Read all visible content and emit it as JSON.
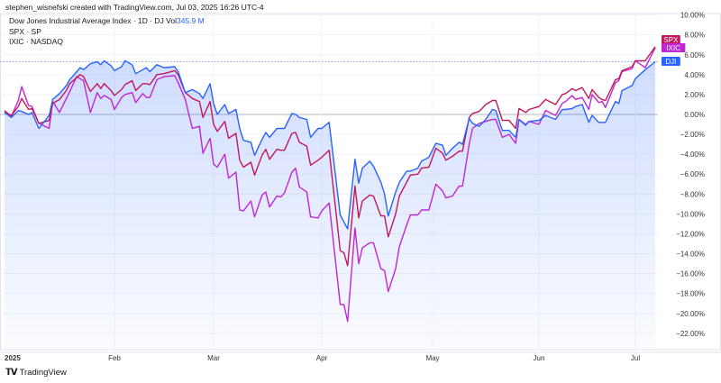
{
  "header": "stephen_wisnefski created with TradingView.com, Jul 03, 2025 16:26 UTC-4",
  "legend": {
    "line1": "Dow Jones Industrial Average Index · 1D · DJ  Vol",
    "vol": "345.9 M",
    "line2": "SPX · SP",
    "line3": "IXIC · NASDAQ"
  },
  "brand": {
    "logo_mark": "TV",
    "name": "TradingView"
  },
  "chart_data": {
    "type": "line",
    "ylabel": "",
    "xlabel": "",
    "ylim": [
      -22,
      10
    ],
    "y_unit": "%",
    "grid": true,
    "y_ticks": [
      "10.00%",
      "8.00%",
      "6.00%",
      "4.00%",
      "2.00%",
      "0.00%",
      "−2.00%",
      "−4.00%",
      "−6.00%",
      "−8.00%",
      "−10.00%",
      "−12.00%",
      "−14.00%",
      "−16.00%",
      "−18.00%",
      "−20.00%",
      "−22.00%"
    ],
    "y_tick_values": [
      10,
      8,
      6,
      4,
      2,
      0,
      -2,
      -4,
      -6,
      -8,
      -10,
      -12,
      -14,
      -16,
      -18,
      -20,
      -22
    ],
    "x_ticks": [
      {
        "label": "2025",
        "date": "2025-01-02"
      },
      {
        "label": "Feb",
        "date": "2025-02-03"
      },
      {
        "label": "Mar",
        "date": "2025-03-03"
      },
      {
        "label": "Apr",
        "date": "2025-04-01"
      },
      {
        "label": "May",
        "date": "2025-05-01"
      },
      {
        "label": "Jun",
        "date": "2025-06-02"
      },
      {
        "label": "Jul",
        "date": "2025-07-01"
      }
    ],
    "x": [
      "2025-01-02",
      "2025-01-04",
      "2025-01-06",
      "2025-01-07",
      "2025-01-09",
      "2025-01-10",
      "2025-01-12",
      "2025-01-15",
      "2025-01-16",
      "2025-01-18",
      "2025-01-20",
      "2025-01-21",
      "2025-01-23",
      "2025-01-24",
      "2025-01-25",
      "2025-01-27",
      "2025-01-29",
      "2025-01-30",
      "2025-01-31",
      "2025-02-02",
      "2025-02-03",
      "2025-02-05",
      "2025-02-06",
      "2025-02-08",
      "2025-02-09",
      "2025-02-11",
      "2025-02-12",
      "2025-02-13",
      "2025-02-15",
      "2025-02-17",
      "2025-02-20",
      "2025-02-21",
      "2025-02-23",
      "2025-02-25",
      "2025-02-27",
      "2025-02-28",
      "2025-03-02",
      "2025-03-03",
      "2025-03-04",
      "2025-03-06",
      "2025-03-07",
      "2025-03-09",
      "2025-03-10",
      "2025-03-11",
      "2025-03-13",
      "2025-03-14",
      "2025-03-16",
      "2025-03-17",
      "2025-03-18",
      "2025-03-20",
      "2025-03-21",
      "2025-03-22",
      "2025-03-24",
      "2025-03-25",
      "2025-03-26",
      "2025-03-28",
      "2025-03-29",
      "2025-03-31",
      "2025-04-01",
      "2025-04-03",
      "2025-04-06",
      "2025-04-07",
      "2025-04-08",
      "2025-04-10",
      "2025-04-11",
      "2025-04-12",
      "2025-04-14",
      "2025-04-15",
      "2025-04-17",
      "2025-04-18",
      "2025-04-19",
      "2025-04-21",
      "2025-04-22",
      "2025-04-24",
      "2025-04-25",
      "2025-04-27",
      "2025-04-28",
      "2025-04-30",
      "2025-05-02",
      "2025-05-04",
      "2025-05-05",
      "2025-05-07",
      "2025-05-09",
      "2025-05-10",
      "2025-05-12",
      "2025-05-13",
      "2025-05-15",
      "2025-05-17",
      "2025-05-19",
      "2025-05-20",
      "2025-05-22",
      "2025-05-24",
      "2025-05-26",
      "2025-05-27",
      "2025-05-29",
      "2025-05-30",
      "2025-06-02",
      "2025-06-04",
      "2025-06-07",
      "2025-06-09",
      "2025-06-10",
      "2025-06-12",
      "2025-06-13",
      "2025-06-15",
      "2025-06-17",
      "2025-06-18",
      "2025-06-20",
      "2025-06-21",
      "2025-06-22",
      "2025-06-25",
      "2025-06-26",
      "2025-06-27",
      "2025-06-30",
      "2025-07-01",
      "2025-07-02",
      "2025-07-03"
    ],
    "series": [
      {
        "name": "DJI",
        "color": "#2962ff",
        "values": [
          0.2,
          -0.3,
          0.4,
          0.3,
          0,
          0.2,
          -1.4,
          -0.1,
          1.5,
          2.1,
          2.9,
          3.5,
          4.3,
          4.7,
          4.5,
          5.1,
          5.3,
          5.0,
          5.4,
          4.9,
          4.4,
          4.8,
          5.4,
          5.0,
          4.1,
          4.5,
          4.7,
          4.3,
          5.0,
          4.7,
          4.8,
          4.3,
          2.2,
          2.5,
          2.1,
          1.6,
          3.1,
          1.1,
          0,
          1.0,
          0.1,
          0.5,
          -1.4,
          -2.6,
          -2.8,
          -4.1,
          -2.5,
          -1.8,
          -2.3,
          -1.4,
          -1.4,
          -1.4,
          0.1,
          0,
          -0.3,
          -0.5,
          -2.3,
          -1.4,
          -1.4,
          -0.8,
          -10.1,
          -10.8,
          -11.5,
          -4.5,
          -6.9,
          -5.4,
          -4.7,
          -5.2,
          -6.8,
          -8.0,
          -10.2,
          -7.8,
          -6.8,
          -5.7,
          -5.7,
          -5.4,
          -4.7,
          -4.3,
          -2.9,
          -3.1,
          -4.1,
          -3.4,
          -2.8,
          -3.0,
          -0.4,
          -0.9,
          -1.2,
          -0.5,
          0.5,
          0.4,
          -1.6,
          -1.6,
          -2.3,
          -0.5,
          -1.1,
          -0.7,
          -0.6,
          -0.1,
          -0.5,
          0.5,
          0.5,
          0.6,
          0.8,
          1.0,
          -0.8,
          -0.1,
          -0.8,
          -0.8,
          -0.8,
          1.3,
          1.1,
          2.4,
          2.9,
          3.6,
          4.5,
          5.3
        ]
      },
      {
        "name": "SPX",
        "color": "#c2185b",
        "values": [
          0.3,
          -0.1,
          0.8,
          1.6,
          0.5,
          0.6,
          -0.9,
          -0.6,
          1.1,
          1.5,
          2.4,
          3.1,
          3.7,
          4.0,
          3.8,
          2.3,
          3.1,
          2.6,
          3.1,
          2.4,
          1.9,
          2.5,
          3.0,
          3.4,
          2.4,
          3.1,
          3.1,
          3.0,
          4.0,
          4.1,
          4.4,
          4.0,
          2.2,
          1.6,
          1.3,
          -0.3,
          1.3,
          -1.0,
          -1.7,
          -0.7,
          -2.4,
          -1.9,
          -4.6,
          -5.3,
          -4.8,
          -6.1,
          -4.1,
          -3.5,
          -4.5,
          -3.5,
          -3.6,
          -3.6,
          -1.9,
          -1.8,
          -2.8,
          -3.2,
          -5.1,
          -4.6,
          -4.3,
          -3.6,
          -13.7,
          -13.9,
          -15.2,
          -7.2,
          -10.4,
          -8.7,
          -8.1,
          -8.2,
          -10.2,
          -10.2,
          -12.3,
          -10.0,
          -8.2,
          -6.8,
          -6.1,
          -6.0,
          -5.4,
          -5.3,
          -3.4,
          -3.9,
          -4.6,
          -4.2,
          -3.7,
          -3.7,
          -0.3,
          0.1,
          0.3,
          1.0,
          1.4,
          1.4,
          -0.6,
          -0.6,
          -1.4,
          0.6,
          0.2,
          0.5,
          0.8,
          1.5,
          1.0,
          2.0,
          2.1,
          2.6,
          2.4,
          2.7,
          1.6,
          2.5,
          1.7,
          1.5,
          1.4,
          3.5,
          3.6,
          4.4,
          4.8,
          5.4,
          5.4,
          6.8
        ]
      },
      {
        "name": "IXIC",
        "color": "#c026d3",
        "values": [
          0.4,
          -0.2,
          1.4,
          2.8,
          0.9,
          0.8,
          -0.9,
          -1.4,
          1.3,
          0.2,
          1.6,
          2.3,
          3.8,
          3.6,
          3.4,
          0.2,
          2.2,
          1.6,
          1.9,
          1.5,
          0.5,
          1.7,
          2.0,
          2.2,
          1.2,
          2.1,
          1.7,
          1.7,
          3.5,
          3.8,
          3.9,
          3.2,
          1.5,
          -1.4,
          -1.2,
          -3.9,
          -2.4,
          -5.0,
          -5.3,
          -4.0,
          -6.4,
          -5.8,
          -9.6,
          -9.7,
          -8.7,
          -10.3,
          -8.1,
          -7.8,
          -9.3,
          -8.2,
          -8.3,
          -7.9,
          -5.8,
          -5.4,
          -7.3,
          -7.8,
          -10.3,
          -10.4,
          -9.7,
          -8.9,
          -19.1,
          -19.1,
          -20.8,
          -11.4,
          -15.0,
          -13.4,
          -12.9,
          -12.9,
          -15.5,
          -15.7,
          -17.8,
          -15.5,
          -13.3,
          -11.1,
          -10.1,
          -10.1,
          -9.6,
          -9.6,
          -7.0,
          -7.7,
          -8.4,
          -8.2,
          -7.2,
          -7.2,
          -3.0,
          -1.4,
          -0.9,
          -0.7,
          -0.5,
          -0.5,
          -2.3,
          -2.0,
          -2.9,
          -0.5,
          -1.0,
          -0.7,
          -1.0,
          0.4,
          -0.1,
          1.1,
          1.3,
          1.9,
          1.5,
          1.7,
          0.5,
          2.0,
          1.2,
          1.3,
          0.7,
          3.2,
          3.4,
          4.3,
          4.6,
          5.4,
          4.7,
          6.7
        ]
      }
    ],
    "filled_series": "DJI",
    "last_value_labels": [
      "SPX",
      "IXIC",
      "DJI"
    ]
  }
}
